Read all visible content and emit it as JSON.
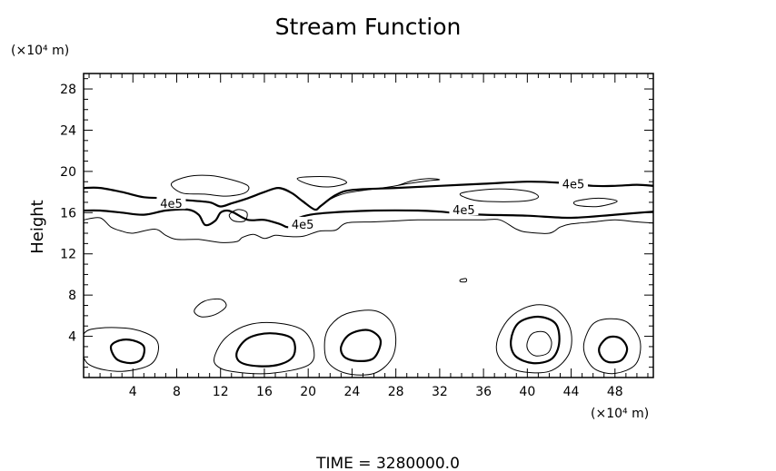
{
  "chart_data": {
    "type": "contour",
    "title": "Stream Function",
    "ylabel": "Height",
    "y_unit_label": "(×10⁴ m)",
    "x_unit_label": "(×10⁴ m)",
    "footer": "TIME  =  3280000.0",
    "xlim": [
      -0.5,
      51.5
    ],
    "ylim": [
      0,
      29.5
    ],
    "xticks": [
      4,
      8,
      12,
      16,
      20,
      24,
      28,
      32,
      36,
      40,
      44,
      48
    ],
    "yticks": [
      4,
      8,
      12,
      16,
      20,
      24,
      28
    ],
    "minor_tick_step": 1,
    "contour_labels": [
      {
        "text": "4e5",
        "x": 7.5,
        "y": 16.8
      },
      {
        "text": "4e5",
        "x": 19.5,
        "y": 14.8
      },
      {
        "text": "4e5",
        "x": 34.2,
        "y": 16.2
      },
      {
        "text": "4e5",
        "x": 44.2,
        "y": 18.7
      }
    ],
    "contours": [
      {
        "weight": "thick",
        "name": "upper-band-top",
        "closed": false,
        "points": [
          [
            -0.5,
            18.4
          ],
          [
            1,
            18.4
          ],
          [
            3,
            18
          ],
          [
            5,
            17.5
          ],
          [
            7,
            17.4
          ],
          [
            9,
            17.2
          ],
          [
            11,
            17
          ],
          [
            12,
            16.6
          ],
          [
            13,
            16.9
          ],
          [
            14.5,
            17.4
          ],
          [
            16,
            18
          ],
          [
            17.3,
            18.4
          ],
          [
            18.5,
            17.9
          ],
          [
            19.5,
            17.1
          ],
          [
            20.6,
            16.3
          ],
          [
            21.2,
            16.7
          ],
          [
            22.5,
            17.7
          ],
          [
            24,
            18.2
          ],
          [
            28,
            18.4
          ],
          [
            32,
            18.6
          ],
          [
            36,
            18.8
          ],
          [
            40,
            19
          ],
          [
            43,
            18.9
          ],
          [
            46,
            18.6
          ],
          [
            48,
            18.6
          ],
          [
            50,
            18.7
          ],
          [
            51.5,
            18.6
          ]
        ]
      },
      {
        "weight": "thick",
        "name": "upper-band-bottom",
        "closed": false,
        "points": [
          [
            -0.5,
            16.2
          ],
          [
            1,
            16.2
          ],
          [
            3,
            16
          ],
          [
            5,
            15.8
          ],
          [
            7,
            16.2
          ],
          [
            9,
            16.3
          ],
          [
            10,
            15.8
          ],
          [
            10.6,
            14.8
          ],
          [
            11.5,
            15.2
          ],
          [
            12,
            16
          ],
          [
            12.6,
            16.2
          ],
          [
            13.2,
            16
          ],
          [
            14.5,
            15.3
          ],
          [
            16,
            15.3
          ],
          [
            17.4,
            14.9
          ],
          [
            18.2,
            14.6
          ],
          [
            19,
            15.4
          ],
          [
            20.2,
            15.8
          ],
          [
            22,
            16
          ],
          [
            26,
            16.2
          ],
          [
            30,
            16.2
          ],
          [
            32,
            16.1
          ],
          [
            34,
            15.9
          ],
          [
            36,
            15.8
          ],
          [
            40,
            15.7
          ],
          [
            44,
            15.5
          ],
          [
            48,
            15.8
          ],
          [
            51.5,
            16.1
          ]
        ]
      },
      {
        "weight": "thin",
        "name": "upper-band-lower-thin",
        "closed": false,
        "points": [
          [
            -0.5,
            15.3
          ],
          [
            1,
            15.5
          ],
          [
            2,
            14.6
          ],
          [
            3,
            14.2
          ],
          [
            4,
            14
          ],
          [
            6,
            14.4
          ],
          [
            7,
            13.8
          ],
          [
            8,
            13.4
          ],
          [
            10,
            13.4
          ],
          [
            12,
            13.1
          ],
          [
            13.5,
            13.2
          ],
          [
            14,
            13.6
          ],
          [
            15,
            13.9
          ],
          [
            16,
            13.5
          ],
          [
            17,
            13.8
          ],
          [
            18,
            13.7
          ],
          [
            19.5,
            13.7
          ],
          [
            21,
            14.2
          ],
          [
            22.5,
            14.3
          ],
          [
            23.5,
            15
          ],
          [
            26,
            15.1
          ],
          [
            28,
            15.2
          ],
          [
            30,
            15.3
          ],
          [
            34,
            15.3
          ],
          [
            36,
            15.3
          ],
          [
            37.5,
            15.3
          ],
          [
            39,
            14.4
          ],
          [
            40,
            14.1
          ],
          [
            42,
            14
          ],
          [
            43,
            14.6
          ],
          [
            44,
            14.9
          ],
          [
            46,
            15.1
          ],
          [
            48,
            15.3
          ],
          [
            50,
            15.1
          ],
          [
            51.5,
            15
          ]
        ]
      },
      {
        "weight": "thin",
        "name": "upper-band-top-thin",
        "closed": false,
        "points": [
          [
            21,
            16.5
          ],
          [
            22,
            17.3
          ],
          [
            23.5,
            17.9
          ],
          [
            26,
            18.3
          ],
          [
            28,
            18.6
          ],
          [
            29.5,
            19.1
          ],
          [
            31,
            19.3
          ],
          [
            32,
            19.2
          ],
          [
            31,
            19.1
          ],
          [
            29,
            18.8
          ],
          [
            28,
            18.6
          ]
        ]
      },
      {
        "weight": "thin",
        "name": "cell-upper-left",
        "closed": true,
        "points": [
          [
            7.5,
            18.8
          ],
          [
            9,
            19.5
          ],
          [
            11,
            19.6
          ],
          [
            13,
            19.2
          ],
          [
            14.5,
            18.6
          ],
          [
            14.2,
            17.9
          ],
          [
            12.5,
            17.6
          ],
          [
            10.5,
            17.8
          ],
          [
            8.5,
            17.9
          ]
        ]
      },
      {
        "weight": "thin",
        "name": "cell-upper-mid",
        "closed": true,
        "points": [
          [
            19,
            19.3
          ],
          [
            20.5,
            19.5
          ],
          [
            22.5,
            19.4
          ],
          [
            23.5,
            18.9
          ],
          [
            22,
            18.5
          ],
          [
            20.2,
            18.7
          ]
        ]
      },
      {
        "weight": "thin",
        "name": "cell-upper-right",
        "closed": true,
        "points": [
          [
            34,
            17.9
          ],
          [
            37,
            18.3
          ],
          [
            40,
            18.1
          ],
          [
            41,
            17.5
          ],
          [
            39.5,
            17.1
          ],
          [
            36,
            17.1
          ],
          [
            34.5,
            17.4
          ]
        ]
      },
      {
        "weight": "thin",
        "name": "cell-upper-far-right",
        "closed": true,
        "points": [
          [
            44.4,
            17.1
          ],
          [
            46.5,
            17.4
          ],
          [
            48.2,
            17.1
          ],
          [
            46.5,
            16.6
          ],
          [
            44.6,
            16.7
          ]
        ]
      },
      {
        "weight": "thin",
        "name": "small-loop-16",
        "closed": true,
        "points": [
          [
            12.8,
            15.8
          ],
          [
            13.6,
            16.3
          ],
          [
            14.4,
            16
          ],
          [
            14.2,
            15.2
          ],
          [
            13.2,
            15.2
          ]
        ]
      },
      {
        "weight": "thin",
        "name": "tiny-loop-34",
        "closed": true,
        "points": [
          [
            33.9,
            9.5
          ],
          [
            34.4,
            9.6
          ],
          [
            34.4,
            9.3
          ],
          [
            33.9,
            9.3
          ]
        ]
      },
      {
        "weight": "thin",
        "name": "cell-10",
        "closed": true,
        "points": [
          [
            9.6,
            6.5
          ],
          [
            10.5,
            7.4
          ],
          [
            12,
            7.6
          ],
          [
            12.5,
            6.9
          ],
          [
            11.5,
            6.1
          ],
          [
            10.2,
            5.9
          ]
        ]
      },
      {
        "weight": "thin",
        "name": "cell-3-outer",
        "closed": true,
        "points": [
          [
            -0.5,
            4.2
          ],
          [
            1,
            4.8
          ],
          [
            4,
            4.7
          ],
          [
            6,
            3.8
          ],
          [
            6.3,
            2.5
          ],
          [
            5.5,
            1.2
          ],
          [
            3,
            0.6
          ],
          [
            0.5,
            1
          ],
          [
            -0.5,
            2
          ]
        ]
      },
      {
        "weight": "thick",
        "name": "cell-3-inner",
        "closed": true,
        "points": [
          [
            2,
            3
          ],
          [
            2.8,
            3.6
          ],
          [
            4,
            3.6
          ],
          [
            5,
            3
          ],
          [
            4.8,
            1.8
          ],
          [
            3.8,
            1.4
          ],
          [
            2.5,
            1.8
          ]
        ]
      },
      {
        "weight": "thin",
        "name": "cell-16-outer",
        "closed": true,
        "points": [
          [
            11.5,
            2.2
          ],
          [
            12.5,
            3.9
          ],
          [
            14.5,
            5.1
          ],
          [
            17,
            5.3
          ],
          [
            19.5,
            4.6
          ],
          [
            20.5,
            2.8
          ],
          [
            20,
            1.2
          ],
          [
            16.5,
            0.4
          ],
          [
            13,
            0.6
          ],
          [
            11.6,
            1.2
          ]
        ]
      },
      {
        "weight": "thick",
        "name": "cell-16-inner",
        "closed": true,
        "points": [
          [
            13.5,
            2.5
          ],
          [
            14.5,
            3.8
          ],
          [
            16.5,
            4.3
          ],
          [
            18.5,
            3.8
          ],
          [
            18.7,
            2.2
          ],
          [
            17.5,
            1.3
          ],
          [
            15.5,
            1.1
          ],
          [
            13.8,
            1.5
          ]
        ]
      },
      {
        "weight": "thin",
        "name": "cell-24-outer",
        "closed": true,
        "points": [
          [
            21.5,
            3.5
          ],
          [
            22,
            5
          ],
          [
            23.5,
            6.2
          ],
          [
            26,
            6.5
          ],
          [
            27.5,
            5.5
          ],
          [
            28,
            3.8
          ],
          [
            27.6,
            1.8
          ],
          [
            26,
            0.4
          ],
          [
            23.5,
            0.4
          ],
          [
            21.8,
            1.5
          ]
        ]
      },
      {
        "weight": "thick",
        "name": "cell-24-inner",
        "closed": true,
        "points": [
          [
            23,
            3
          ],
          [
            23.8,
            4.2
          ],
          [
            25.5,
            4.6
          ],
          [
            26.6,
            3.6
          ],
          [
            26,
            1.9
          ],
          [
            24.5,
            1.6
          ],
          [
            23.3,
            2
          ]
        ]
      },
      {
        "weight": "thin",
        "name": "cell-41-outer",
        "closed": true,
        "points": [
          [
            37.3,
            3.8
          ],
          [
            38.5,
            5.9
          ],
          [
            40.5,
            7
          ],
          [
            42.5,
            6.7
          ],
          [
            43.9,
            4.8
          ],
          [
            43.8,
            2.3
          ],
          [
            42,
            0.6
          ],
          [
            39,
            0.7
          ],
          [
            37.4,
            2
          ]
        ]
      },
      {
        "weight": "thick",
        "name": "cell-41-mid",
        "closed": true,
        "points": [
          [
            38.5,
            3.6
          ],
          [
            39.2,
            5.3
          ],
          [
            41,
            5.9
          ],
          [
            42.6,
            5.2
          ],
          [
            42.9,
            3.3
          ],
          [
            42.2,
            1.8
          ],
          [
            40.5,
            1.4
          ],
          [
            38.9,
            2.1
          ]
        ]
      },
      {
        "weight": "thin",
        "name": "cell-41-inner",
        "closed": true,
        "points": [
          [
            40,
            3.4
          ],
          [
            40.5,
            4.3
          ],
          [
            41.6,
            4.4
          ],
          [
            42.2,
            3.5
          ],
          [
            41.9,
            2.4
          ],
          [
            40.8,
            2.1
          ],
          [
            40.1,
            2.6
          ]
        ]
      },
      {
        "weight": "thin",
        "name": "cell-47-outer",
        "closed": true,
        "points": [
          [
            45.2,
            3.5
          ],
          [
            46,
            5.2
          ],
          [
            47.5,
            5.7
          ],
          [
            49.2,
            5.3
          ],
          [
            50.3,
            3.5
          ],
          [
            49.9,
            1.3
          ],
          [
            48,
            0.4
          ],
          [
            46.2,
            0.8
          ],
          [
            45.3,
            2.1
          ]
        ]
      },
      {
        "weight": "thick",
        "name": "cell-47-inner",
        "closed": true,
        "points": [
          [
            46.6,
            3
          ],
          [
            47.4,
            3.9
          ],
          [
            48.5,
            3.8
          ],
          [
            49.1,
            2.8
          ],
          [
            48.6,
            1.7
          ],
          [
            47.4,
            1.5
          ],
          [
            46.7,
            2.1
          ]
        ]
      }
    ]
  }
}
